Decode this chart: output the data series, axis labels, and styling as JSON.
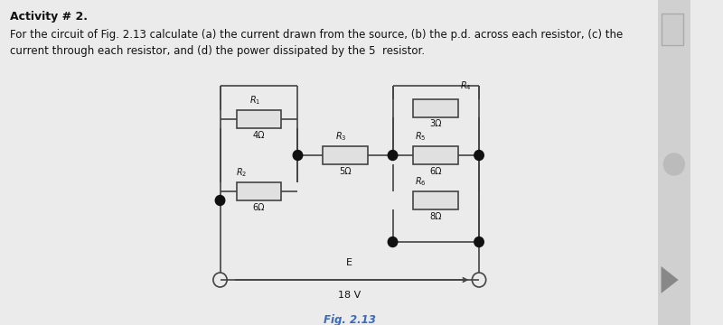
{
  "title_line1": "Activity # 2.",
  "title_line2": "For the circuit of Fig. 2.13 calculate (a) the current drawn from the source, (b) the p.d. across each resistor, (c) the",
  "title_line3": "current through each resistor, and (d) the power dissipated by the 5  resistor.",
  "fig_label": "Fig. 2.13",
  "source_label": "E",
  "source_value": "18 V",
  "bg_color": "#ebebeb",
  "circuit_color": "#444444",
  "text_color": "#111111",
  "resistor_fill": "#e0e0e0",
  "node_color": "#111111",
  "fig2_label_color": "#3a6abf",
  "sidebar_color": "#d0d0d0",
  "title1_bold": true,
  "title_fontsize": 9.0,
  "fig_label_fontsize": 9.0,
  "circuit_lw": 1.2,
  "node_r": 0.055
}
